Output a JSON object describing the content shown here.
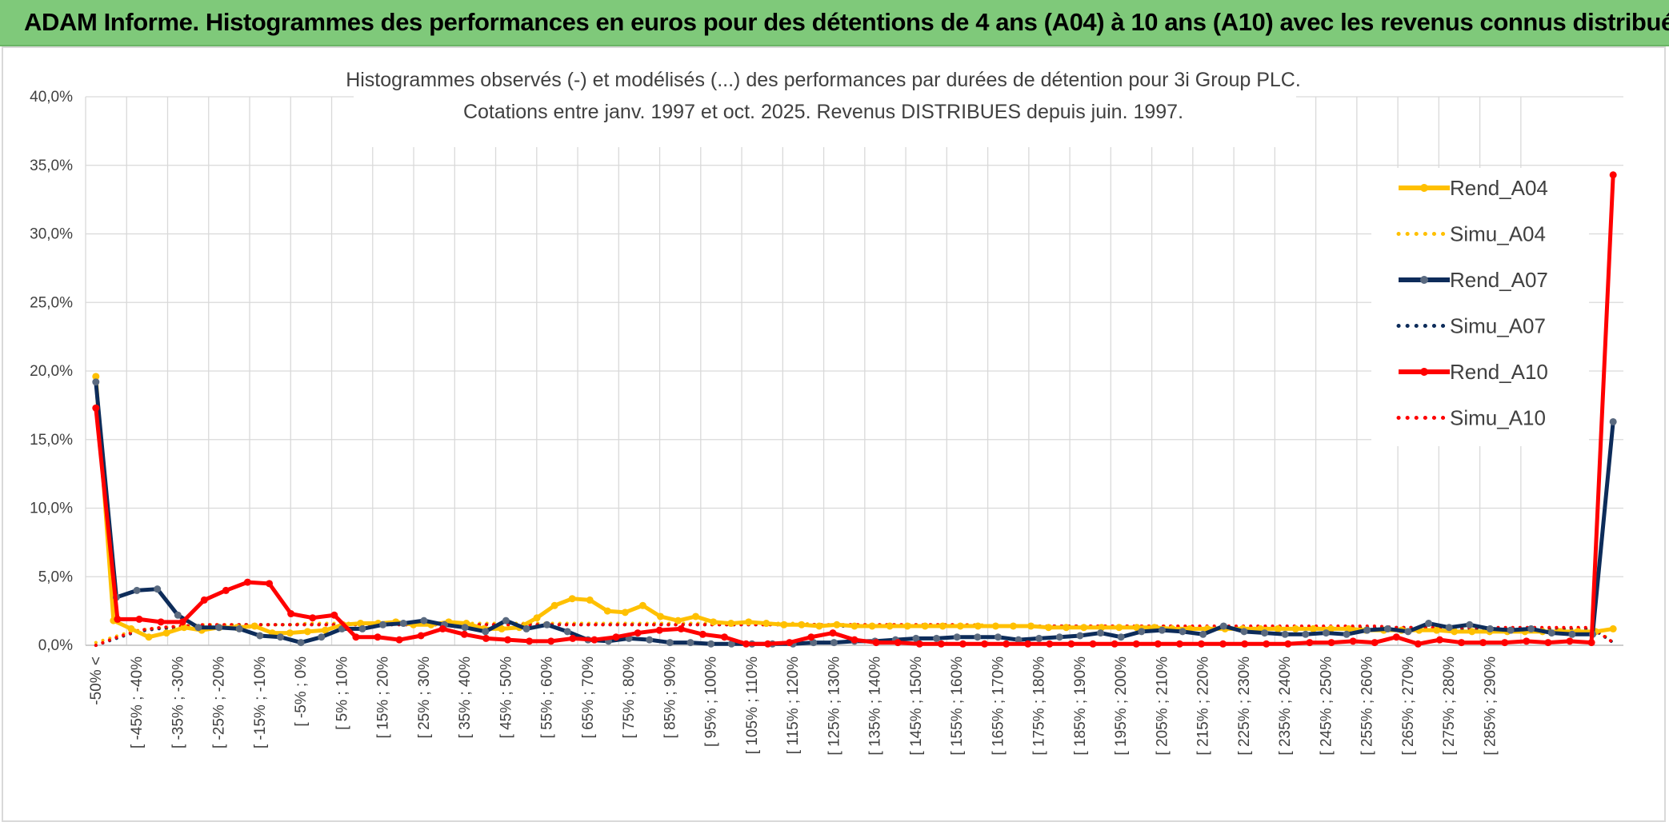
{
  "header": {
    "title": "ADAM Informe. Histogrammes des performances en euros pour des détentions de 4 ans (A04) à 10 ans (A10) avec les revenus connus distribués"
  },
  "chart_data": {
    "type": "line",
    "title_lines": [
      "Histogrammes observés (-) et modélisés (...) des performances par durées de détention pour 3i Group PLC.",
      "Cotations entre janv. 1997 et oct. 2025. Revenus DISTRIBUES depuis juin. 1997."
    ],
    "xlabel": "",
    "ylabel": "",
    "ylim": [
      0,
      40
    ],
    "yticks": [
      "0,0%",
      "5,0%",
      "10,0%",
      "15,0%",
      "20,0%",
      "25,0%",
      "30,0%",
      "35,0%",
      "40,0%"
    ],
    "grid": true,
    "legend_position": "right",
    "x_tick_labels": [
      "-50% <",
      "[ -45% ; -40%",
      "[ -35% ; -30%",
      "[ -25% ; -20%",
      "[ -15% ; -10%",
      "[ -5% ; 0%",
      "[ 5% ; 10%",
      "[ 15% ; 20%",
      "[ 25% ; 30%",
      "[ 35% ; 40%",
      "[ 45% ; 50%",
      "[ 55% ; 60%",
      "[ 65% ; 70%",
      "[ 75% ; 80%",
      "[ 85% ; 90%",
      "[ 95% ; 100%",
      "[ 105% ; 110%",
      "[ 115% ; 120%",
      "[ 125% ; 130%",
      "[ 135% ; 140%",
      "[ 145% ; 150%",
      "[ 155% ; 160%",
      "[ 165% ; 170%",
      "[ 175% ; 180%",
      "[ 185% ; 190%",
      "[ 195% ; 200%",
      "[ 205% ; 210%",
      "[ 215% ; 220%",
      "[ 225% ; 230%",
      "[ 235% ; 240%",
      "[ 245% ; 250%",
      "[ 255% ; 260%",
      "[ 265% ; 270%",
      "[ 275% ; 280%",
      "[ 285% ; 290%"
    ],
    "series": [
      {
        "name": "Rend_A04",
        "style": "solid",
        "color": "#ffc000",
        "values": [
          19.6,
          1.8,
          1.2,
          0.6,
          0.9,
          1.3,
          1.1,
          1.3,
          1.3,
          1.4,
          0.9,
          0.9,
          1.0,
          1.1,
          1.5,
          1.6,
          1.6,
          1.7,
          1.5,
          1.5,
          1.7,
          1.6,
          1.2,
          1.2,
          1.3,
          2.0,
          2.9,
          3.4,
          3.3,
          2.5,
          2.4,
          2.9,
          2.1,
          1.8,
          2.1,
          1.7,
          1.6,
          1.7,
          1.6,
          1.5,
          1.5,
          1.4,
          1.5,
          1.4,
          1.4,
          1.4,
          1.4,
          1.4,
          1.4,
          1.4,
          1.4,
          1.4,
          1.4,
          1.4,
          1.3,
          1.3,
          1.3,
          1.3,
          1.3,
          1.3,
          1.3,
          1.2,
          1.2,
          1.2,
          1.2,
          1.2,
          1.2,
          1.2,
          1.2,
          1.2,
          1.2,
          1.2,
          1.1,
          1.1,
          1.1,
          1.1,
          1.1,
          1.0,
          1.0,
          1.0,
          1.0,
          1.0,
          1.0,
          1.0,
          1.0,
          1.0,
          1.2
        ]
      },
      {
        "name": "Simu_A04",
        "style": "dotted",
        "color": "#ffc000",
        "values": [
          0.2,
          0.6,
          1.0,
          1.2,
          1.3,
          1.4,
          1.5,
          1.5,
          1.5,
          1.5,
          1.5,
          1.5,
          1.6,
          1.6,
          1.6,
          1.6,
          1.6,
          1.6,
          1.6,
          1.6,
          1.6,
          1.6,
          1.6,
          1.6,
          1.6,
          1.6,
          1.6,
          1.6,
          1.6,
          1.6,
          1.6,
          1.6,
          1.6,
          1.6,
          1.6,
          1.6,
          1.6,
          1.6,
          1.6,
          1.6,
          1.6,
          1.5,
          1.5,
          1.5,
          1.5,
          1.5,
          1.5,
          1.5,
          1.5,
          1.5,
          1.5,
          1.4,
          1.4,
          1.4,
          1.4,
          1.4,
          1.4,
          1.4,
          1.4,
          1.4,
          1.4,
          1.4,
          1.3,
          1.3,
          1.3,
          1.3,
          1.3,
          1.3,
          1.3,
          1.3,
          1.3,
          1.3,
          1.3,
          1.2,
          1.2,
          1.2,
          1.2,
          1.2,
          1.2,
          1.2,
          1.2,
          1.2,
          1.2,
          1.2,
          1.2,
          1.2,
          0.2
        ]
      },
      {
        "name": "Rend_A07",
        "style": "solid",
        "color": "#0d2c5a",
        "values": [
          19.2,
          3.5,
          4.0,
          4.1,
          2.2,
          1.3,
          1.3,
          1.2,
          0.7,
          0.6,
          0.2,
          0.6,
          1.2,
          1.2,
          1.5,
          1.6,
          1.8,
          1.5,
          1.3,
          1.0,
          1.8,
          1.2,
          1.5,
          1.0,
          0.4,
          0.3,
          0.5,
          0.4,
          0.2,
          0.2,
          0.1,
          0.1,
          0.1,
          0.1,
          0.1,
          0.2,
          0.2,
          0.3,
          0.3,
          0.4,
          0.5,
          0.5,
          0.6,
          0.6,
          0.6,
          0.4,
          0.5,
          0.6,
          0.7,
          0.9,
          0.6,
          1.0,
          1.1,
          1.0,
          0.8,
          1.4,
          1.0,
          0.9,
          0.8,
          0.8,
          0.9,
          0.8,
          1.1,
          1.2,
          1.0,
          1.6,
          1.3,
          1.5,
          1.2,
          1.1,
          1.2,
          0.9,
          0.8,
          0.8,
          16.3
        ]
      },
      {
        "name": "Simu_A07",
        "style": "dotted",
        "color": "#0d2c5a",
        "values": [
          0.0,
          0.5,
          1.0,
          1.2,
          1.3,
          1.4,
          1.4,
          1.5,
          1.5,
          1.5,
          1.5,
          1.5,
          1.5,
          1.5,
          1.5,
          1.5,
          1.5,
          1.5,
          1.5,
          1.5,
          1.5,
          1.5,
          1.5,
          1.5,
          1.5,
          1.5,
          1.5,
          1.5,
          1.5,
          1.5,
          1.5,
          1.5,
          1.5,
          1.5,
          1.5,
          1.5,
          1.4,
          1.4,
          1.4,
          1.4,
          1.4,
          1.4,
          1.4,
          1.4,
          1.4,
          1.4,
          1.4,
          1.4,
          1.4,
          1.3,
          1.3,
          1.3,
          1.3,
          1.3,
          1.3,
          1.3,
          1.3,
          1.3,
          1.3,
          1.3,
          1.3,
          1.3,
          1.3,
          1.3,
          1.3,
          1.3,
          1.2,
          1.2,
          1.2,
          1.2,
          1.2,
          1.2,
          1.2,
          1.2,
          0.2
        ]
      },
      {
        "name": "Rend_A10",
        "style": "solid",
        "color": "#ff0000",
        "values": [
          17.3,
          1.9,
          1.9,
          1.7,
          1.7,
          3.3,
          4.0,
          4.6,
          4.5,
          2.3,
          2.0,
          2.2,
          0.6,
          0.6,
          0.4,
          0.7,
          1.2,
          0.8,
          0.5,
          0.4,
          0.3,
          0.3,
          0.5,
          0.4,
          0.6,
          0.9,
          1.1,
          1.2,
          0.8,
          0.6,
          0.1,
          0.1,
          0.2,
          0.6,
          0.9,
          0.4,
          0.2,
          0.2,
          0.1,
          0.1,
          0.1,
          0.1,
          0.1,
          0.1,
          0.1,
          0.1,
          0.1,
          0.1,
          0.1,
          0.1,
          0.1,
          0.1,
          0.1,
          0.1,
          0.1,
          0.1,
          0.2,
          0.2,
          0.3,
          0.2,
          0.6,
          0.1,
          0.4,
          0.2,
          0.2,
          0.2,
          0.3,
          0.2,
          0.3,
          0.2,
          34.3
        ]
      },
      {
        "name": "Simu_A10",
        "style": "dotted",
        "color": "#ff0000",
        "values": [
          0.0,
          0.6,
          1.1,
          1.3,
          1.4,
          1.5,
          1.5,
          1.5,
          1.5,
          1.5,
          1.5,
          1.5,
          1.5,
          1.5,
          1.5,
          1.5,
          1.5,
          1.5,
          1.5,
          1.5,
          1.5,
          1.5,
          1.5,
          1.5,
          1.5,
          1.5,
          1.5,
          1.5,
          1.5,
          1.5,
          1.5,
          1.5,
          1.5,
          1.5,
          1.5,
          1.5,
          1.5,
          1.5,
          1.5,
          1.5,
          1.5,
          1.4,
          1.4,
          1.4,
          1.4,
          1.4,
          1.4,
          1.4,
          1.4,
          1.4,
          1.4,
          1.4,
          1.4,
          1.4,
          1.4,
          1.4,
          1.4,
          1.4,
          1.4,
          1.4,
          1.3,
          1.3,
          1.3,
          1.3,
          1.3,
          1.3,
          1.3,
          1.3,
          1.3,
          1.3,
          0.2
        ]
      }
    ]
  }
}
